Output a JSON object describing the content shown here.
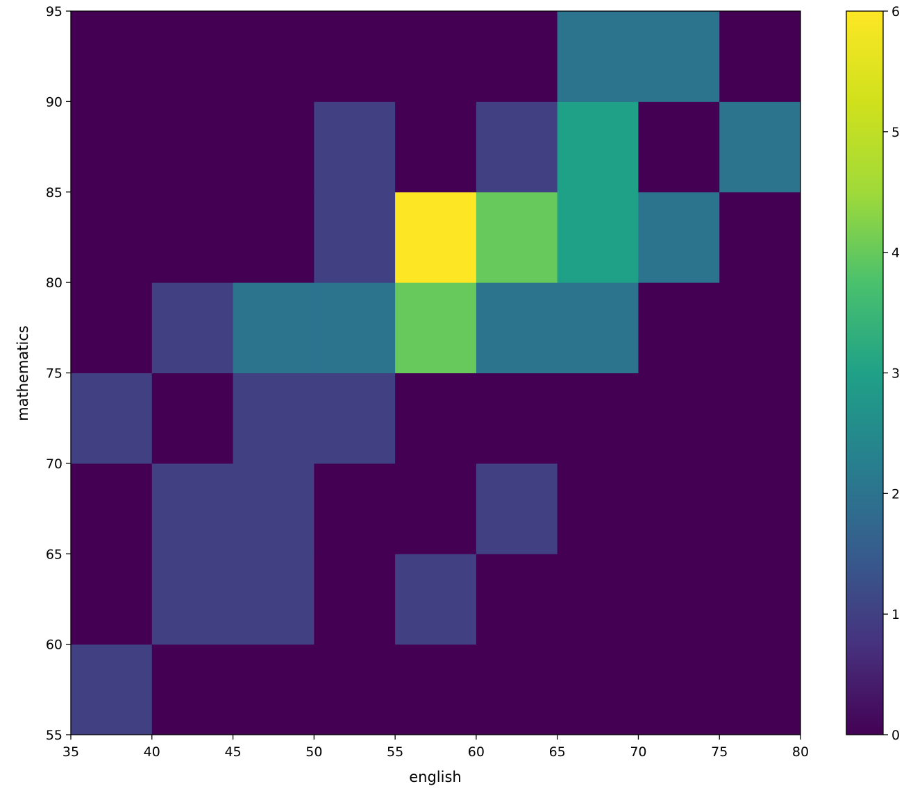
{
  "chart_data": {
    "type": "heatmap",
    "title": "",
    "xlabel": "english",
    "ylabel": "mathematics",
    "x_edges": [
      35,
      40,
      45,
      50,
      55,
      60,
      65,
      70,
      75,
      80
    ],
    "y_edges": [
      55,
      60,
      65,
      70,
      75,
      80,
      85,
      90,
      95
    ],
    "xlim": [
      35,
      80
    ],
    "ylim": [
      55,
      95
    ],
    "x_ticks": [
      35,
      40,
      45,
      50,
      55,
      60,
      65,
      70,
      75,
      80
    ],
    "y_ticks": [
      55,
      60,
      65,
      70,
      75,
      80,
      85,
      90,
      95
    ],
    "counts_by_y_bin": [
      [
        1,
        0,
        0,
        0,
        0,
        0,
        0,
        0,
        0
      ],
      [
        0,
        1,
        1,
        0,
        1,
        0,
        0,
        0,
        0
      ],
      [
        0,
        1,
        1,
        0,
        0,
        1,
        0,
        0,
        0
      ],
      [
        1,
        0,
        1,
        1,
        0,
        0,
        0,
        0,
        0
      ],
      [
        0,
        1,
        2,
        2,
        4,
        2,
        2,
        0,
        0
      ],
      [
        0,
        0,
        0,
        1,
        6,
        4,
        3,
        2,
        0
      ],
      [
        0,
        0,
        0,
        1,
        0,
        1,
        3,
        0,
        2
      ],
      [
        0,
        0,
        0,
        0,
        0,
        0,
        2,
        2,
        0
      ]
    ],
    "colorbar": {
      "min": 0,
      "max": 6,
      "ticks": [
        0,
        1,
        2,
        3,
        4,
        5,
        6
      ],
      "colormap": "viridis"
    },
    "grid": false
  }
}
